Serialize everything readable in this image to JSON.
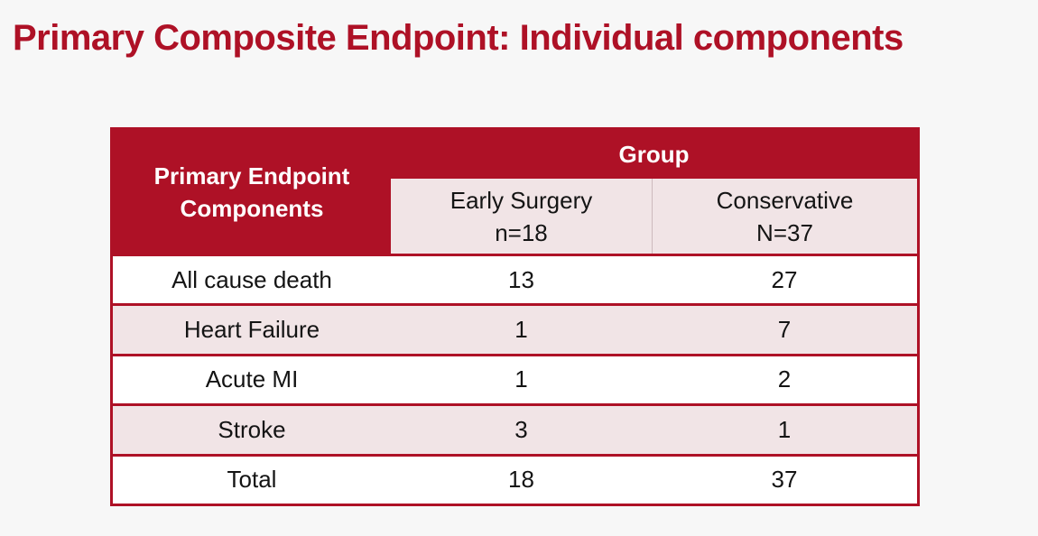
{
  "page": {
    "background_color": "#f7f7f7"
  },
  "title": {
    "text": "Primary Composite Endpoint: Individual components",
    "color": "#ae1126"
  },
  "table": {
    "corner_header_line1": "Primary Endpoint",
    "corner_header_line2": "Components",
    "group_header": "Group",
    "column_headers": [
      {
        "name": "Early Surgery",
        "sub": "n=18"
      },
      {
        "name": "Conservative",
        "sub": "N=37"
      }
    ],
    "rows": [
      {
        "label": "All cause death",
        "early_surgery": "13",
        "conservative": "27"
      },
      {
        "label": "Heart Failure",
        "early_surgery": "1",
        "conservative": "7"
      },
      {
        "label": "Acute MI",
        "early_surgery": "1",
        "conservative": "2"
      },
      {
        "label": "Stroke",
        "early_surgery": "3",
        "conservative": "1"
      },
      {
        "label": "Total",
        "early_surgery": "18",
        "conservative": "37"
      }
    ],
    "colors": {
      "header_bg": "#ae1126",
      "header_text": "#ffffff",
      "subheader_bg": "#f1e4e6",
      "row_bg": "#ffffff",
      "row_alt_bg": "#f1e4e6",
      "border": "#ae1126",
      "body_text": "#141414"
    }
  }
}
